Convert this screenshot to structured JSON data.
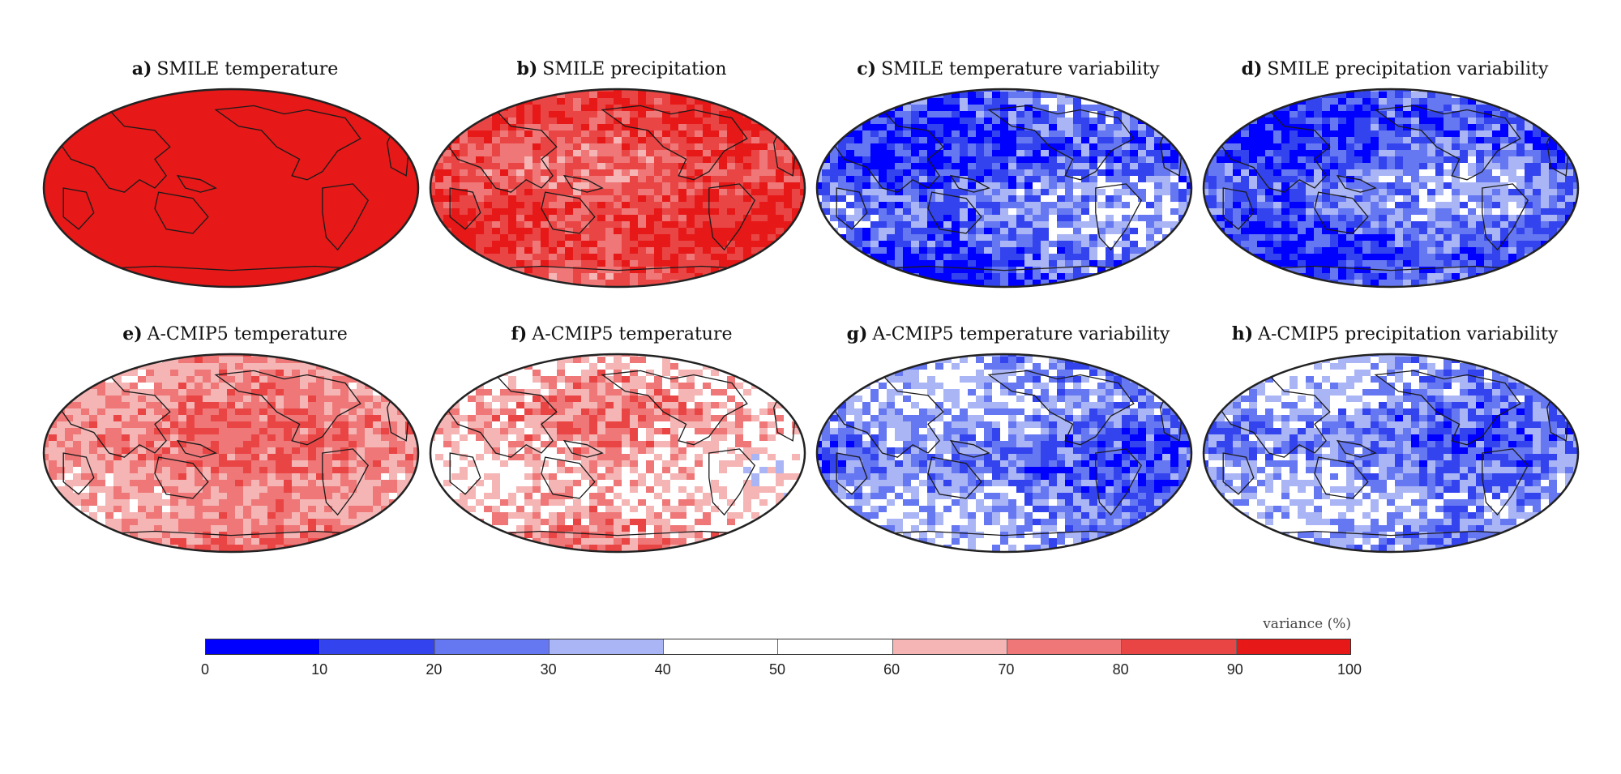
{
  "chart_data": [
    {
      "type": "heatmap",
      "panel": "a)",
      "title": "SMILE temperature",
      "mean_level": 96,
      "spread": 4
    },
    {
      "type": "heatmap",
      "panel": "b)",
      "title": "SMILE precipitation",
      "mean_level": 86,
      "spread": 16
    },
    {
      "type": "heatmap",
      "panel": "c)",
      "title": "SMILE temperature variability",
      "mean_level": 22,
      "spread": 26
    },
    {
      "type": "heatmap",
      "panel": "d)",
      "title": "SMILE precipitation variability",
      "mean_level": 20,
      "spread": 22
    },
    {
      "type": "heatmap",
      "panel": "e)",
      "title": "A-CMIP5 temperature",
      "mean_level": 72,
      "spread": 14
    },
    {
      "type": "heatmap",
      "panel": "f)",
      "title": "A-CMIP5 temperature",
      "mean_level": 62,
      "spread": 22
    },
    {
      "type": "heatmap",
      "panel": "g)",
      "title": "A-CMIP5 temperature variability",
      "mean_level": 28,
      "spread": 22
    },
    {
      "type": "heatmap",
      "panel": "h)",
      "title": "A-CMIP5 precipitation variability",
      "mean_level": 30,
      "spread": 22
    }
  ],
  "colorbar": {
    "label": "variance (%)",
    "ticks": [
      "0",
      "10",
      "20",
      "30",
      "40",
      "50",
      "60",
      "70",
      "80",
      "90",
      "100"
    ],
    "colors": [
      "#0000ff",
      "#3344ee",
      "#6677f2",
      "#aab5f6",
      "#ffffff",
      "#ffffff",
      "#f5b5b5",
      "#ef7777",
      "#ea4545",
      "#e61818"
    ]
  }
}
